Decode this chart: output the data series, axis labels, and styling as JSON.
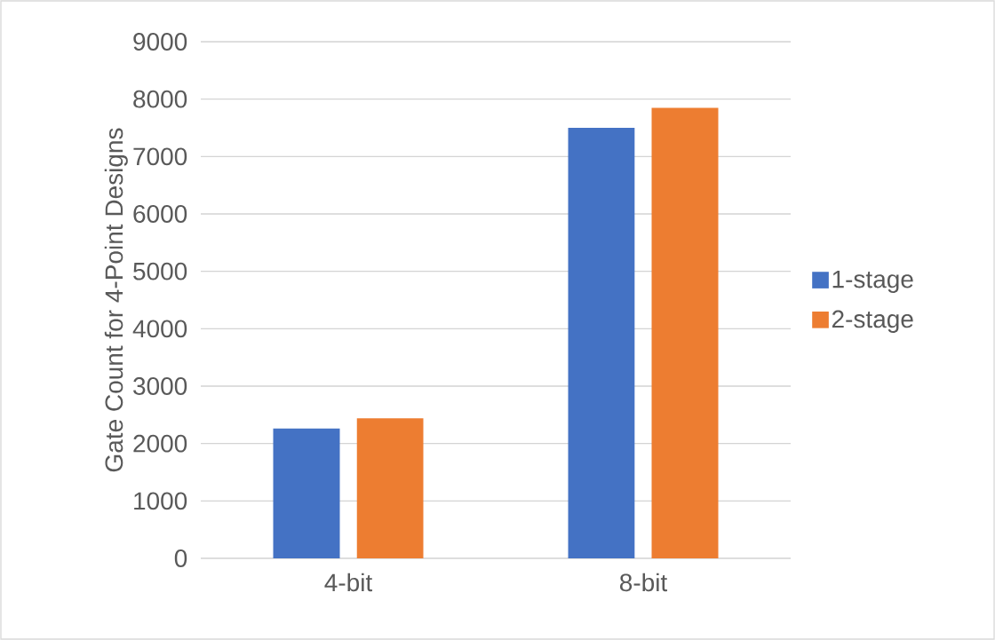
{
  "chart_data": {
    "type": "bar",
    "ylabel": "Gate Count for 4-Point Designs",
    "categories": [
      "4-bit",
      "8-bit"
    ],
    "series": [
      {
        "name": "1-stage",
        "color": "#4472c4",
        "values": [
          2260,
          7500
        ]
      },
      {
        "name": "2-stage",
        "color": "#ed7d31",
        "values": [
          2440,
          7850
        ]
      }
    ],
    "ylim": [
      0,
      9000
    ],
    "yticks": [
      0,
      1000,
      2000,
      3000,
      4000,
      5000,
      6000,
      7000,
      8000,
      9000
    ],
    "grid": "y",
    "legend": "right"
  }
}
